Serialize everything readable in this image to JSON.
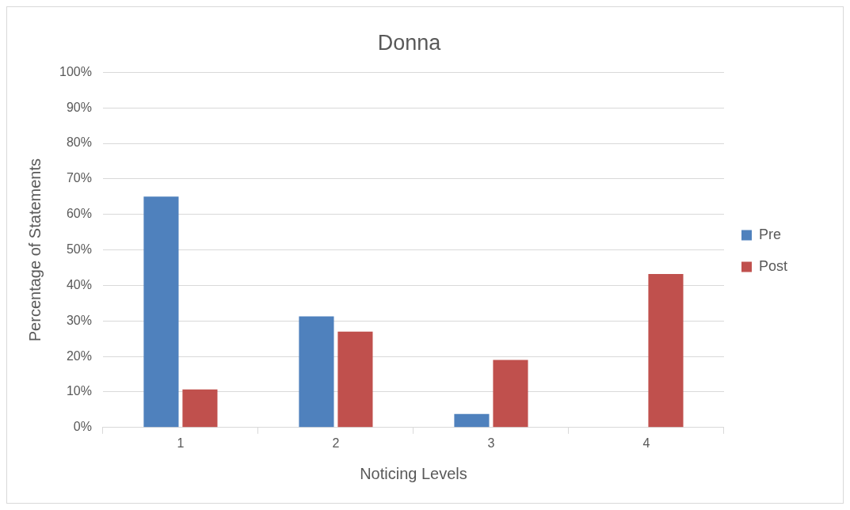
{
  "chart_data": {
    "type": "bar",
    "title": "Donna",
    "xlabel": "Noticing Levels",
    "ylabel": "Percentage of Statements",
    "categories": [
      "1",
      "2",
      "3",
      "4"
    ],
    "series": [
      {
        "name": "Pre",
        "color": "#4f81bd",
        "values": [
          65,
          31.3,
          3.8,
          0
        ]
      },
      {
        "name": "Post",
        "color": "#c0504d",
        "values": [
          10.7,
          27,
          19,
          43.2
        ]
      }
    ],
    "ylim": [
      0,
      100
    ],
    "yticks": [
      {
        "value": 0,
        "label": "0%"
      },
      {
        "value": 10,
        "label": "10%"
      },
      {
        "value": 20,
        "label": "20%"
      },
      {
        "value": 30,
        "label": "30%"
      },
      {
        "value": 40,
        "label": "40%"
      },
      {
        "value": 50,
        "label": "50%"
      },
      {
        "value": 60,
        "label": "60%"
      },
      {
        "value": 70,
        "label": "70%"
      },
      {
        "value": 80,
        "label": "80%"
      },
      {
        "value": 90,
        "label": "90%"
      },
      {
        "value": 100,
        "label": "100%"
      }
    ],
    "grid": "y",
    "legend": "right"
  }
}
